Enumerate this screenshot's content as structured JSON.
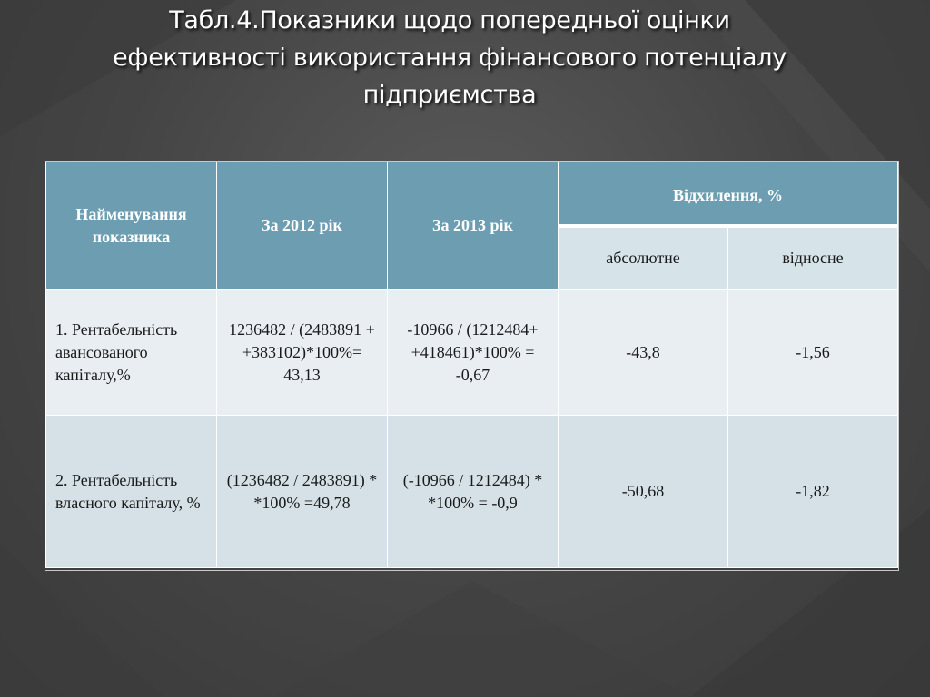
{
  "title": {
    "lines": [
      "Табл.4.Показники щодо попередньої оцінки",
      "ефективності використання фінансового потенціалу",
      "підприємства"
    ]
  },
  "table": {
    "headers": {
      "name": "Найменування показника",
      "year2012": "За 2012 рік",
      "year2013": "За 2013 рік",
      "deviation": "Відхилення, %",
      "absolute": "абсолютне",
      "relative": "відносне"
    },
    "rows": [
      {
        "name": "1. Рентабельність авансованого капіталу,%",
        "y2012": "1236482 / (2483891 + +383102)*100%= 43,13",
        "y2013": "-10966 / (1212484+ +418461)*100% = -0,67",
        "absolute": "-43,8",
        "relative": "-1,56"
      },
      {
        "name": "2. Рентабельність власного капіталу, %",
        "y2012": "(1236482 / 2483891) * *100% =49,78",
        "y2013": "(-10966 / 1212484) * *100% = -0,9",
        "absolute": "-50,68",
        "relative": "-1,82"
      }
    ]
  },
  "colors": {
    "header_fill": "#6c9db0",
    "subheader_fill": "#d6e3e9",
    "row1_fill": "#e9eef2",
    "row2_fill": "#d5e1e7",
    "background": "#4a4a4a"
  }
}
